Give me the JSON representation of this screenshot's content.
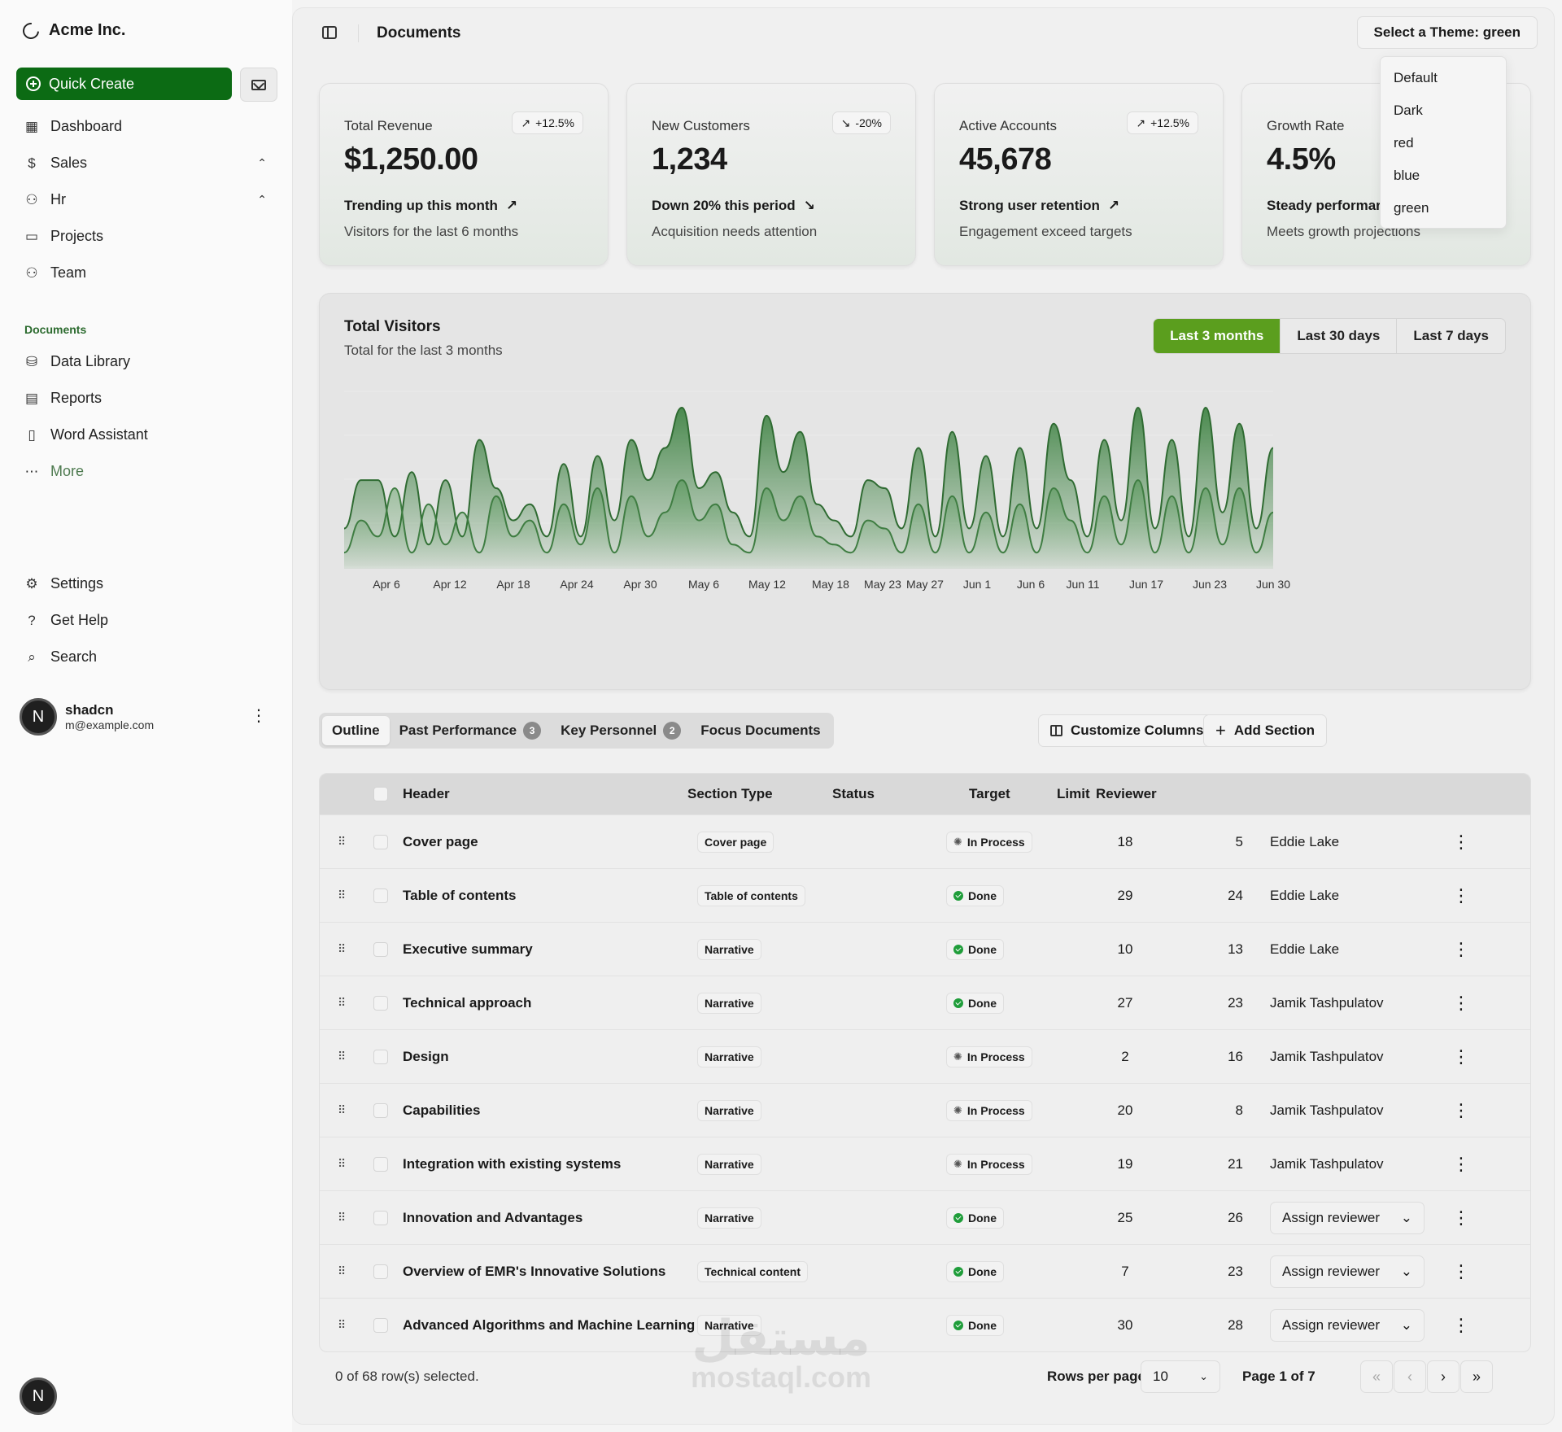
{
  "brand": {
    "name": "Acme Inc."
  },
  "sidebar": {
    "quick_create": "Quick Create",
    "main_items": [
      {
        "label": "Dashboard",
        "icon": "dashboard-icon"
      },
      {
        "label": "Sales",
        "icon": "dollar-icon",
        "expanded": true
      },
      {
        "label": "Hr",
        "icon": "users-icon",
        "expanded": true
      },
      {
        "label": "Projects",
        "icon": "folder-icon"
      },
      {
        "label": "Team",
        "icon": "team-icon"
      }
    ],
    "documents_heading": "Documents",
    "doc_items": [
      {
        "label": "Data Library",
        "icon": "database-icon"
      },
      {
        "label": "Reports",
        "icon": "report-icon"
      },
      {
        "label": "Word Assistant",
        "icon": "file-icon"
      },
      {
        "label": "More",
        "icon": "dots-icon"
      }
    ],
    "footer_items": [
      {
        "label": "Settings",
        "icon": "gear-icon"
      },
      {
        "label": "Get Help",
        "icon": "help-icon"
      },
      {
        "label": "Search",
        "icon": "search-icon"
      }
    ],
    "user": {
      "initial": "N",
      "name": "shadcn",
      "email": "m@example.com"
    }
  },
  "header": {
    "title": "Documents",
    "theme_select": "Select a Theme: green",
    "theme_options": [
      "Default",
      "Dark",
      "red",
      "blue",
      "green"
    ]
  },
  "cards": [
    {
      "label": "Total Revenue",
      "value": "$1,250.00",
      "badge": "+12.5%",
      "badge_dir": "up",
      "trend": "Trending up this month",
      "trend_dir": "up",
      "sub": "Visitors for the last 6 months"
    },
    {
      "label": "New Customers",
      "value": "1,234",
      "badge": "-20%",
      "badge_dir": "down",
      "trend": "Down 20% this period",
      "trend_dir": "down",
      "sub": "Acquisition needs attention"
    },
    {
      "label": "Active Accounts",
      "value": "45,678",
      "badge": "+12.5%",
      "badge_dir": "up",
      "trend": "Strong user retention",
      "trend_dir": "up",
      "sub": "Engagement exceed targets"
    },
    {
      "label": "Growth Rate",
      "value": "4.5%",
      "badge": "",
      "badge_dir": "up",
      "trend": "Steady performar",
      "trend_dir": "up",
      "sub": "Meets growth projections"
    }
  ],
  "chart": {
    "title": "Total Visitors",
    "subtitle": "Total for the last 3 months",
    "ranges": [
      "Last 3 months",
      "Last 30 days",
      "Last 7 days"
    ],
    "active_range": 0,
    "accent": "#5b9e1e"
  },
  "chart_data": {
    "type": "area",
    "x_ticks": [
      "Apr 6",
      "Apr 12",
      "Apr 18",
      "Apr 24",
      "Apr 30",
      "May 6",
      "May 12",
      "May 18",
      "May 23",
      "May 27",
      "Jun 1",
      "Jun 6",
      "Jun 11",
      "Jun 17",
      "Jun 23",
      "Jun 30"
    ],
    "series": [
      {
        "values": [
          0.25,
          0.55,
          0.55,
          0.2,
          0.6,
          0.15,
          0.55,
          0.2,
          0.8,
          0.5,
          0.3,
          0.4,
          0.2,
          0.65,
          0.2,
          0.7,
          0.3,
          0.8,
          0.55,
          0.75,
          1.0,
          0.5,
          0.6,
          0.35,
          0.2,
          0.95,
          0.6,
          0.85,
          0.4,
          0.3,
          0.2,
          0.55,
          0.5,
          0.25,
          0.75,
          0.2,
          0.85,
          0.25,
          0.7,
          0.2,
          0.75,
          0.25,
          0.9,
          0.55,
          0.2,
          0.8,
          0.3,
          1.0,
          0.25,
          0.8,
          0.2,
          1.0,
          0.35,
          0.9,
          0.25,
          0.75
        ]
      },
      {
        "values": [
          0.1,
          0.3,
          0.2,
          0.5,
          0.1,
          0.4,
          0.15,
          0.35,
          0.1,
          0.45,
          0.2,
          0.3,
          0.1,
          0.4,
          0.15,
          0.5,
          0.1,
          0.45,
          0.2,
          0.35,
          0.55,
          0.3,
          0.4,
          0.15,
          0.1,
          0.5,
          0.3,
          0.45,
          0.2,
          0.15,
          0.1,
          0.3,
          0.25,
          0.1,
          0.4,
          0.1,
          0.45,
          0.1,
          0.35,
          0.1,
          0.4,
          0.1,
          0.5,
          0.3,
          0.1,
          0.45,
          0.15,
          0.55,
          0.1,
          0.45,
          0.1,
          0.5,
          0.15,
          0.5,
          0.1,
          0.35
        ]
      }
    ]
  },
  "tabs": [
    {
      "label": "Outline",
      "count": "",
      "active": true
    },
    {
      "label": "Past Performance",
      "count": "3",
      "active": false
    },
    {
      "label": "Key Personnel",
      "count": "2",
      "active": false
    },
    {
      "label": "Focus Documents",
      "count": "",
      "active": false
    }
  ],
  "toolbar": {
    "customize": "Customize Columns",
    "add_section": "Add Section"
  },
  "table": {
    "columns": {
      "header": "Header",
      "type": "Section Type",
      "status": "Status",
      "target": "Target",
      "limit": "Limit",
      "reviewer": "Reviewer"
    },
    "rows": [
      {
        "header": "Cover page",
        "type": "Cover page",
        "status": "In Process",
        "target": "18",
        "limit": "5",
        "reviewer": "Eddie Lake"
      },
      {
        "header": "Table of contents",
        "type": "Table of contents",
        "status": "Done",
        "target": "29",
        "limit": "24",
        "reviewer": "Eddie Lake"
      },
      {
        "header": "Executive summary",
        "type": "Narrative",
        "status": "Done",
        "target": "10",
        "limit": "13",
        "reviewer": "Eddie Lake"
      },
      {
        "header": "Technical approach",
        "type": "Narrative",
        "status": "Done",
        "target": "27",
        "limit": "23",
        "reviewer": "Jamik Tashpulatov"
      },
      {
        "header": "Design",
        "type": "Narrative",
        "status": "In Process",
        "target": "2",
        "limit": "16",
        "reviewer": "Jamik Tashpulatov"
      },
      {
        "header": "Capabilities",
        "type": "Narrative",
        "status": "In Process",
        "target": "20",
        "limit": "8",
        "reviewer": "Jamik Tashpulatov"
      },
      {
        "header": "Integration with existing systems",
        "type": "Narrative",
        "status": "In Process",
        "target": "19",
        "limit": "21",
        "reviewer": "Jamik Tashpulatov"
      },
      {
        "header": "Innovation and Advantages",
        "type": "Narrative",
        "status": "Done",
        "target": "25",
        "limit": "26",
        "reviewer": "Assign reviewer"
      },
      {
        "header": "Overview of EMR's Innovative Solutions",
        "type": "Technical content",
        "status": "Done",
        "target": "7",
        "limit": "23",
        "reviewer": "Assign reviewer"
      },
      {
        "header": "Advanced Algorithms and Machine Learning",
        "type": "Narrative",
        "status": "Done",
        "target": "30",
        "limit": "28",
        "reviewer": "Assign reviewer"
      }
    ]
  },
  "footer": {
    "selected": "0 of 68 row(s) selected.",
    "rows_per_page_label": "Rows per page",
    "rows_per_page": "10",
    "page": "Page 1 of 7"
  },
  "watermark": {
    "arabic": "مستقل",
    "latin": "mostaql.com"
  }
}
